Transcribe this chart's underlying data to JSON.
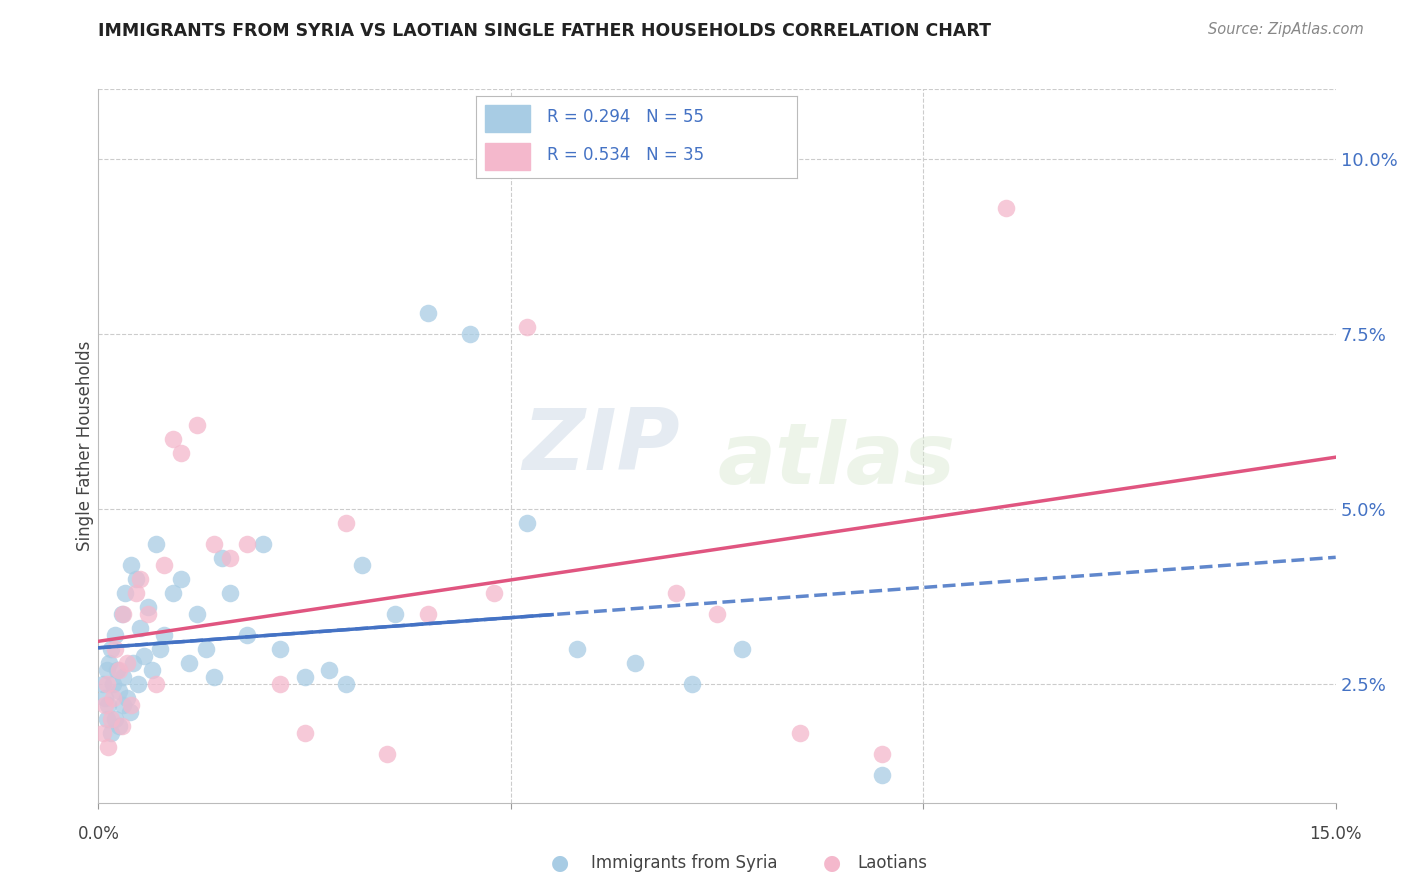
{
  "title": "IMMIGRANTS FROM SYRIA VS LAOTIAN SINGLE FATHER HOUSEHOLDS CORRELATION CHART",
  "source": "Source: ZipAtlas.com",
  "ylabel": "Single Father Households",
  "ytick_values": [
    2.5,
    5.0,
    7.5,
    10.0
  ],
  "xlim": [
    0.0,
    15.0
  ],
  "ylim": [
    0.8,
    11.0
  ],
  "legend_label1": "Immigrants from Syria",
  "legend_label2": "Laotians",
  "legend_R1": "R = 0.294",
  "legend_N1": "N = 55",
  "legend_R2": "R = 0.534",
  "legend_N2": "N = 35",
  "color_blue": "#a8cce4",
  "color_pink": "#f4b8cc",
  "color_blue_line": "#4472c4",
  "color_pink_line": "#e05580",
  "background_color": "#ffffff",
  "grid_color": "#cccccc",
  "blue_scatter_x": [
    0.05,
    0.08,
    0.1,
    0.1,
    0.12,
    0.13,
    0.15,
    0.15,
    0.18,
    0.2,
    0.2,
    0.22,
    0.25,
    0.25,
    0.28,
    0.3,
    0.3,
    0.32,
    0.35,
    0.38,
    0.4,
    0.42,
    0.45,
    0.48,
    0.5,
    0.55,
    0.6,
    0.65,
    0.7,
    0.75,
    0.8,
    0.9,
    1.0,
    1.1,
    1.2,
    1.3,
    1.4,
    1.5,
    1.6,
    1.8,
    2.0,
    2.2,
    2.5,
    2.8,
    3.0,
    3.2,
    3.6,
    4.0,
    4.5,
    5.2,
    5.8,
    6.5,
    7.2,
    7.8,
    9.5
  ],
  "blue_scatter_y": [
    2.5,
    2.3,
    2.7,
    2.0,
    2.2,
    2.8,
    1.8,
    3.0,
    2.5,
    2.0,
    3.2,
    2.7,
    1.9,
    2.4,
    3.5,
    2.2,
    2.6,
    3.8,
    2.3,
    2.1,
    4.2,
    2.8,
    4.0,
    2.5,
    3.3,
    2.9,
    3.6,
    2.7,
    4.5,
    3.0,
    3.2,
    3.8,
    4.0,
    2.8,
    3.5,
    3.0,
    2.6,
    4.3,
    3.8,
    3.2,
    4.5,
    3.0,
    2.6,
    2.7,
    2.5,
    4.2,
    3.5,
    7.8,
    7.5,
    4.8,
    3.0,
    2.8,
    2.5,
    3.0,
    1.2
  ],
  "pink_scatter_x": [
    0.05,
    0.08,
    0.1,
    0.12,
    0.15,
    0.18,
    0.2,
    0.25,
    0.28,
    0.3,
    0.35,
    0.4,
    0.45,
    0.5,
    0.6,
    0.7,
    0.8,
    0.9,
    1.0,
    1.2,
    1.4,
    1.6,
    1.8,
    2.2,
    2.5,
    3.0,
    3.5,
    4.0,
    4.8,
    5.2,
    7.0,
    7.5,
    8.5,
    9.5,
    11.0
  ],
  "pink_scatter_y": [
    1.8,
    2.2,
    2.5,
    1.6,
    2.0,
    2.3,
    3.0,
    2.7,
    1.9,
    3.5,
    2.8,
    2.2,
    3.8,
    4.0,
    3.5,
    2.5,
    4.2,
    6.0,
    5.8,
    6.2,
    4.5,
    4.3,
    4.5,
    2.5,
    1.8,
    4.8,
    1.5,
    3.5,
    3.8,
    7.6,
    3.8,
    3.5,
    1.8,
    1.5,
    9.3
  ],
  "watermark_zip": "ZIP",
  "watermark_atlas": "atlas"
}
